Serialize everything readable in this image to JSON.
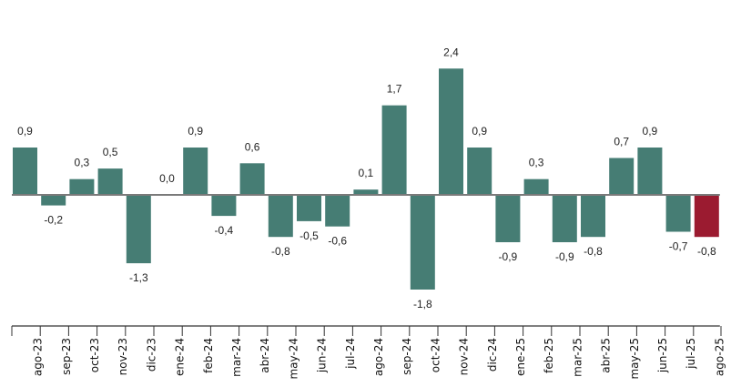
{
  "chart_data": {
    "type": "bar",
    "title": "",
    "xlabel": "",
    "ylabel": "",
    "ylim": [
      -2.5,
      3.7
    ],
    "grid": false,
    "categories": [
      "ago-23",
      "sep-23",
      "oct-23",
      "nov-23",
      "dic-23",
      "ene-24",
      "feb-24",
      "mar-24",
      "abr-24",
      "may-24",
      "jun-24",
      "jul-24",
      "ago-24",
      "sep-24",
      "oct-24",
      "nov-24",
      "dic-24",
      "ene-25",
      "feb-25",
      "mar-25",
      "abr-25",
      "may-25",
      "jun-25",
      "jul-25",
      "ago-25"
    ],
    "values": [
      0.9,
      -0.2,
      0.3,
      0.5,
      -1.3,
      0.0,
      0.9,
      -0.4,
      0.6,
      -0.8,
      -0.5,
      -0.6,
      0.1,
      1.7,
      -1.8,
      2.4,
      0.9,
      -0.9,
      0.3,
      -0.9,
      -0.8,
      0.7,
      0.9,
      -0.7,
      -0.8
    ],
    "data_labels": [
      "0,9",
      "-0,2",
      "0,3",
      "0,5",
      "-1,3",
      "0,0",
      "0,9",
      "-0,4",
      "0,6",
      "-0,8",
      "-0,5",
      "-0,6",
      "0,1",
      "1,7",
      "-1,8",
      "2,4",
      "0,9",
      "-0,9",
      "0,3",
      "-0,9",
      "-0,8",
      "0,7",
      "0,9",
      "-0,7",
      "-0,8"
    ],
    "highlight_index": 24,
    "colors": {
      "bar": "#467d74",
      "highlight": "#9b1b30",
      "axis": "#333333",
      "zero_line": "#7a7a7a"
    }
  }
}
